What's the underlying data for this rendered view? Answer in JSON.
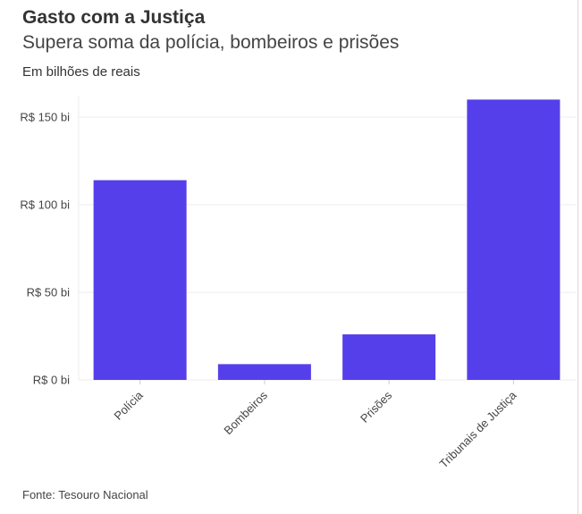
{
  "header": {
    "title": "Gasto com a Justiça",
    "subtitle": "Supera soma da polícia, bombeiros e prisões",
    "unit": "Em bilhões de reais"
  },
  "footer": {
    "source": "Fonte: Tesouro Nacional"
  },
  "colors": {
    "bar": "#553fea",
    "grid": "#eeeeee"
  },
  "chart_data": {
    "type": "bar",
    "title": "Gasto com a Justiça",
    "subtitle": "Supera soma da polícia, bombeiros e prisões",
    "ylabel": "Em bilhões de reais",
    "xlabel": "",
    "categories": [
      "Polícia",
      "Bombeiros",
      "Prisões",
      "Tribunais de Justiça"
    ],
    "values": [
      114,
      9,
      26,
      160
    ],
    "ylim": [
      0,
      160
    ],
    "yticks": [
      0,
      50,
      100,
      150
    ],
    "ytick_labels": [
      "R$ 0 bi",
      "R$ 50 bi",
      "R$ 100 bi",
      "R$ 150 bi"
    ],
    "grid": true,
    "legend": "none"
  }
}
